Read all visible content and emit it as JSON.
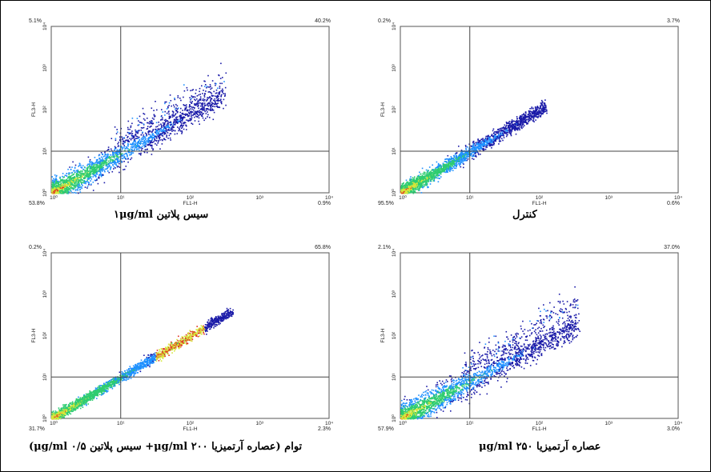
{
  "chart_data": [
    {
      "type": "scatter",
      "panel": "top-left",
      "xlabel": "FL1-H",
      "ylabel": "FL3-H",
      "x_ticks": [
        "10⁰",
        "10¹",
        "10²",
        "10³",
        "10⁴"
      ],
      "y_ticks": [
        "10⁰",
        "10¹",
        "10²",
        "10³",
        "10⁴"
      ],
      "log_scale": true,
      "gate": {
        "x": 10,
        "y": 10
      },
      "quadrants": {
        "ul": "5.1%",
        "ur": "40.2%",
        "ll": "53.8%",
        "lr": "0.9%"
      },
      "caption": "سیس پلاتین  ۱μg/ml",
      "population": {
        "x_end": 300,
        "slope": 0.95,
        "spread": 0.14,
        "upper_cluster": 0.35
      }
    },
    {
      "type": "scatter",
      "panel": "top-right",
      "xlabel": "FL1-H",
      "ylabel": "FL3-H",
      "x_ticks": [
        "10⁰",
        "10¹",
        "10²",
        "10³",
        "10⁴"
      ],
      "y_ticks": [
        "10⁰",
        "10¹",
        "10²",
        "10³",
        "10⁴"
      ],
      "log_scale": true,
      "gate": {
        "x": 10,
        "y": 10
      },
      "quadrants": {
        "ul": "0.2%",
        "ur": "3.7%",
        "ll": "95.5%",
        "lr": "0.6%"
      },
      "caption": "کنترل",
      "population": {
        "x_end": 120,
        "slope": 1.0,
        "spread": 0.08,
        "upper_cluster": 0.0
      }
    },
    {
      "type": "scatter",
      "panel": "bottom-left",
      "xlabel": "FL1-H",
      "ylabel": "FL3-H",
      "x_ticks": [
        "10⁰",
        "10¹",
        "10²",
        "10³",
        "10⁴"
      ],
      "y_ticks": [
        "10⁰",
        "10¹",
        "10²",
        "10³",
        "10⁴"
      ],
      "log_scale": true,
      "gate": {
        "x": 10,
        "y": 10
      },
      "quadrants": {
        "ul": "0.2%",
        "ur": "65.8%",
        "ll": "31.7%",
        "lr": "2.3%"
      },
      "caption": "توام (عصاره آرتمیزیا μg/ml  ۲۰۰+ سیس پلاتین  μg/ml ۰/۵)",
      "population": {
        "x_end": 400,
        "slope": 1.0,
        "spread": 0.05,
        "upper_cluster": 0.0
      }
    },
    {
      "type": "scatter",
      "panel": "bottom-right",
      "xlabel": "FL1-H",
      "ylabel": "FL3-H",
      "x_ticks": [
        "10⁰",
        "10¹",
        "10²",
        "10³",
        "10⁴"
      ],
      "y_ticks": [
        "10⁰",
        "10¹",
        "10²",
        "10³",
        "10⁴"
      ],
      "log_scale": true,
      "gate": {
        "x": 10,
        "y": 10
      },
      "quadrants": {
        "ul": "2.1%",
        "ur": "37.0%",
        "ll": "57.9%",
        "lr": "3.0%"
      },
      "caption": "عصاره آرتمیزیا μg/ml ۲۵۰",
      "population": {
        "x_end": 350,
        "slope": 0.9,
        "spread": 0.15,
        "upper_cluster": 0.4
      }
    }
  ],
  "colors": {
    "axis": "#555555",
    "gate_line": "#444444",
    "density_low": "#1a1aa8",
    "density_mid": "#1e90ff",
    "density_high": "#2ecc71",
    "density_peak": "#d6e83a",
    "density_max": "#e03020"
  }
}
